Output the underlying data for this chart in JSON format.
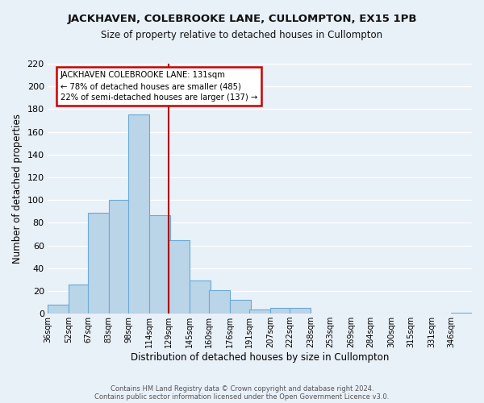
{
  "title": "JACKHAVEN, COLEBROOKE LANE, CULLOMPTON, EX15 1PB",
  "subtitle": "Size of property relative to detached houses in Cullompton",
  "xlabel": "Distribution of detached houses by size in Cullompton",
  "ylabel": "Number of detached properties",
  "bin_labels": [
    "36sqm",
    "52sqm",
    "67sqm",
    "83sqm",
    "98sqm",
    "114sqm",
    "129sqm",
    "145sqm",
    "160sqm",
    "176sqm",
    "191sqm",
    "207sqm",
    "222sqm",
    "238sqm",
    "253sqm",
    "269sqm",
    "284sqm",
    "300sqm",
    "315sqm",
    "331sqm",
    "346sqm"
  ],
  "bar_heights": [
    8,
    26,
    89,
    100,
    175,
    87,
    65,
    29,
    21,
    12,
    4,
    5,
    5,
    0,
    0,
    0,
    0,
    0,
    0,
    0,
    1
  ],
  "bar_color": "#bad4e8",
  "bar_edge_color": "#6aaad4",
  "property_line_x": 129,
  "property_line_color": "#aa0000",
  "annotation_title": "JACKHAVEN COLEBROOKE LANE: 131sqm",
  "annotation_line1": "← 78% of detached houses are smaller (485)",
  "annotation_line2": "22% of semi-detached houses are larger (137) →",
  "annotation_box_color": "#ffffff",
  "annotation_box_edge": "#cc0000",
  "ylim": [
    0,
    220
  ],
  "yticks": [
    0,
    20,
    40,
    60,
    80,
    100,
    120,
    140,
    160,
    180,
    200,
    220
  ],
  "footer1": "Contains HM Land Registry data © Crown copyright and database right 2024.",
  "footer2": "Contains public sector information licensed under the Open Government Licence v3.0.",
  "bg_color": "#e8f0f8",
  "plot_bg_color": "#e8f0f8",
  "grid_color": "#ffffff",
  "bin_values": [
    36,
    52,
    67,
    83,
    98,
    114,
    129,
    145,
    160,
    176,
    191,
    207,
    222,
    238,
    253,
    269,
    284,
    300,
    315,
    331,
    346
  ],
  "bin_width": 16
}
